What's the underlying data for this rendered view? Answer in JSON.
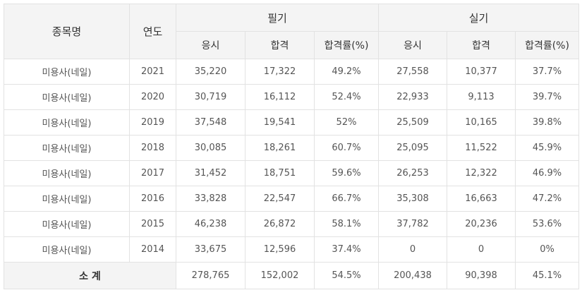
{
  "headers": {
    "item": "종목명",
    "year": "연도",
    "written": "필기",
    "practical": "실기",
    "sub": [
      "응시",
      "합격",
      "합격률(%)",
      "응시",
      "합격",
      "합격률(%)"
    ]
  },
  "rows": [
    [
      "미용사(네일)",
      "2021",
      "35,220",
      "17,322",
      "49.2%",
      "27,558",
      "10,377",
      "37.7%"
    ],
    [
      "미용사(네일)",
      "2020",
      "30,719",
      "16,112",
      "52.4%",
      "22,933",
      "9,113",
      "39.7%"
    ],
    [
      "미용사(네일)",
      "2019",
      "37,548",
      "19,541",
      "52%",
      "25,509",
      "10,165",
      "39.8%"
    ],
    [
      "미용사(네일)",
      "2018",
      "30,085",
      "18,261",
      "60.7%",
      "25,095",
      "11,522",
      "45.9%"
    ],
    [
      "미용사(네일)",
      "2017",
      "31,452",
      "18,751",
      "59.6%",
      "26,253",
      "12,322",
      "46.9%"
    ],
    [
      "미용사(네일)",
      "2016",
      "33,828",
      "22,547",
      "66.7%",
      "35,308",
      "16,663",
      "47.2%"
    ],
    [
      "미용사(네일)",
      "2015",
      "46,238",
      "26,872",
      "58.1%",
      "37,782",
      "20,236",
      "53.6%"
    ],
    [
      "미용사(네일)",
      "2014",
      "33,675",
      "12,596",
      "37.4%",
      "0",
      "0",
      "0%"
    ]
  ],
  "total": {
    "label": "소 계",
    "values": [
      "278,765",
      "152,002",
      "54.5%",
      "200,438",
      "90,398",
      "45.1%"
    ]
  }
}
